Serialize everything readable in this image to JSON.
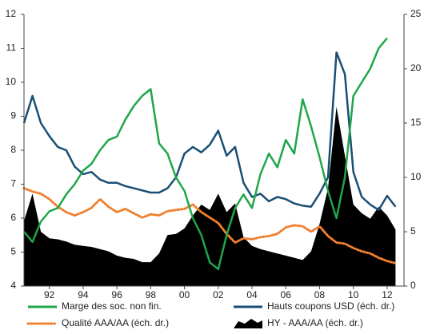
{
  "chart_data": {
    "type": "line",
    "x": [
      1990.5,
      1991,
      1991.5,
      1992,
      1992.5,
      1993,
      1993.5,
      1994,
      1994.5,
      1995,
      1995.5,
      1996,
      1996.5,
      1997,
      1997.5,
      1998,
      1998.5,
      1999,
      1999.5,
      2000,
      2000.5,
      2001,
      2001.5,
      2002,
      2002.5,
      2003,
      2003.5,
      2004,
      2004.5,
      2005,
      2005.5,
      2006,
      2006.5,
      2007,
      2007.5,
      2008,
      2008.5,
      2009,
      2009.5,
      2010,
      2010.5,
      2011,
      2011.5,
      2012,
      2012.5
    ],
    "xlim": [
      1990.5,
      2013
    ],
    "xticks": [
      {
        "value": 1992,
        "label": "92"
      },
      {
        "value": 1994,
        "label": "94"
      },
      {
        "value": 1996,
        "label": "96"
      },
      {
        "value": 1998,
        "label": "98"
      },
      {
        "value": 2000,
        "label": "00"
      },
      {
        "value": 2002,
        "label": "02"
      },
      {
        "value": 2004,
        "label": "04"
      },
      {
        "value": 2006,
        "label": "06"
      },
      {
        "value": 2008,
        "label": "08"
      },
      {
        "value": 2010,
        "label": "10"
      },
      {
        "value": 2012,
        "label": "12"
      }
    ],
    "ylim": [
      4,
      12
    ],
    "yticks": [
      4,
      5,
      6,
      7,
      8,
      9,
      10,
      11,
      12
    ],
    "y2lim": [
      0,
      25
    ],
    "y2ticks": [
      0,
      5,
      10,
      15,
      20,
      25
    ],
    "legend": "bottom",
    "series": [
      {
        "name": "Marge des soc. non fin.",
        "type": "line",
        "color": "#1fa64a",
        "values": [
          5.6,
          5.3,
          5.9,
          6.2,
          6.3,
          6.7,
          7.0,
          7.4,
          7.6,
          8.0,
          8.3,
          8.4,
          8.9,
          9.3,
          9.6,
          9.8,
          8.2,
          7.9,
          7.2,
          6.8,
          6.0,
          5.5,
          4.7,
          4.5,
          5.5,
          6.3,
          6.7,
          6.3,
          7.3,
          7.9,
          7.5,
          8.3,
          7.9,
          9.5,
          8.7,
          7.8,
          6.8,
          6.0,
          7.2,
          9.6,
          10.0,
          10.4,
          11.0,
          11.3,
          null
        ]
      },
      {
        "name": "Hauts coupons USD (éch. dr.)",
        "type": "line",
        "axis": "y2",
        "color": "#1a4f75",
        "values": [
          15,
          17.5,
          15,
          13.8,
          12.8,
          12.5,
          11.0,
          10.3,
          10.5,
          9.8,
          9.5,
          9.5,
          9.2,
          9.0,
          8.8,
          8.6,
          8.6,
          9.0,
          10.0,
          12.2,
          12.8,
          12.3,
          13.0,
          14.3,
          12.0,
          12.8,
          9.5,
          8.2,
          8.5,
          7.8,
          8.2,
          8.0,
          7.6,
          7.4,
          7.3,
          8.5,
          10.0,
          21.5,
          19.5,
          10.5,
          8.2,
          7.5,
          7.0,
          8.3,
          7.3
        ]
      },
      {
        "name": "Qualité AAA/AA (éch. dr.)",
        "type": "line",
        "axis": "y2",
        "color": "#f07f2e",
        "dash": "dotted",
        "values": [
          9.0,
          8.7,
          8.5,
          8.0,
          7.3,
          6.8,
          6.5,
          6.8,
          7.2,
          8.0,
          7.3,
          6.8,
          7.1,
          6.7,
          6.3,
          6.6,
          6.5,
          6.9,
          7.0,
          7.1,
          7.5,
          6.8,
          6.3,
          5.8,
          4.8,
          4.0,
          4.4,
          4.3,
          4.5,
          4.6,
          4.8,
          5.4,
          5.6,
          5.5,
          5.0,
          5.5,
          4.6,
          4.0,
          3.9,
          3.5,
          3.2,
          3.0,
          2.6,
          2.3,
          2.1
        ]
      },
      {
        "name": "HY - AAA/AA (éch. dr.)",
        "type": "area",
        "axis": "y2",
        "color": "#000000",
        "values": [
          6,
          8.5,
          5.0,
          4.4,
          4.3,
          4.1,
          3.8,
          3.7,
          3.6,
          3.4,
          3.2,
          2.8,
          2.6,
          2.5,
          2.2,
          2.2,
          3.0,
          4.7,
          4.8,
          5.3,
          6.5,
          7.5,
          7.0,
          8.5,
          6.8,
          7.6,
          4.5,
          3.7,
          3.4,
          3.2,
          3.0,
          2.8,
          2.6,
          2.4,
          3.2,
          5.7,
          9.0,
          16.5,
          12,
          7.5,
          6.7,
          6.2,
          7.3,
          6.5,
          5.2
        ]
      }
    ]
  }
}
